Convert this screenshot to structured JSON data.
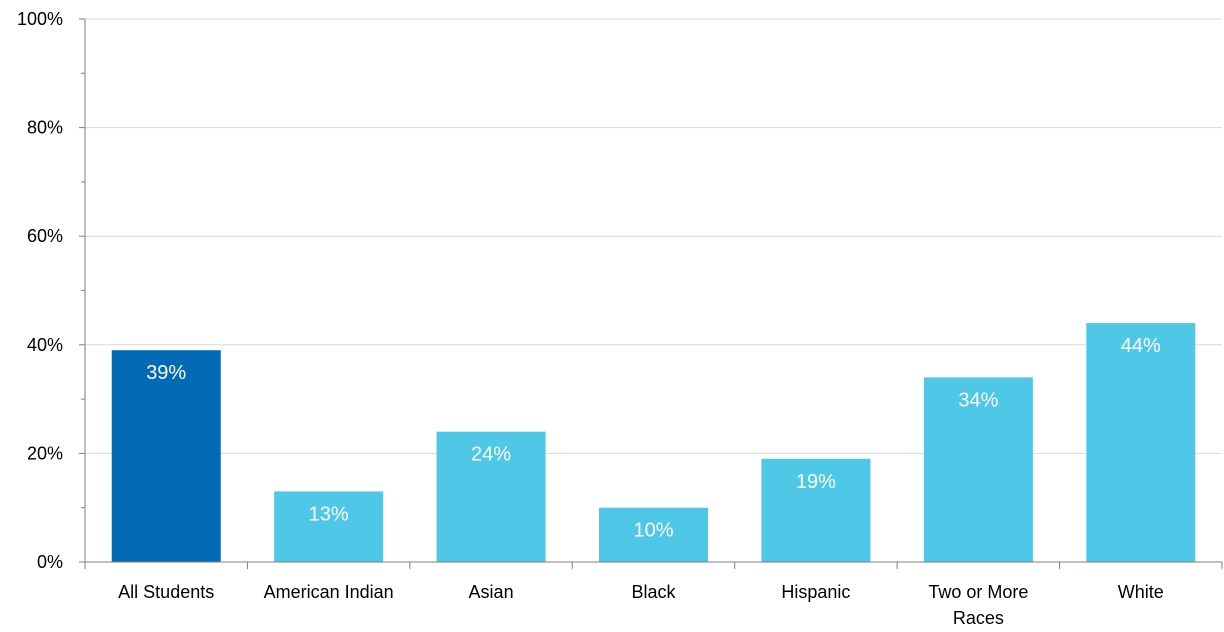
{
  "chart_data": {
    "type": "bar",
    "title": "",
    "xlabel": "",
    "ylabel": "",
    "categories": [
      [
        "All Students"
      ],
      [
        "American Indian"
      ],
      [
        "Asian"
      ],
      [
        "Black"
      ],
      [
        "Hispanic"
      ],
      [
        "Two or More",
        "Races"
      ],
      [
        "White"
      ]
    ],
    "values": [
      39,
      13,
      24,
      10,
      19,
      34,
      44
    ],
    "data_labels": [
      "39%",
      "13%",
      "24%",
      "10%",
      "19%",
      "34%",
      "44%"
    ],
    "ylim": [
      0,
      100
    ],
    "yticks": [
      0,
      20,
      40,
      60,
      80,
      100
    ],
    "ytick_labels": [
      "0%",
      "20%",
      "40%",
      "60%",
      "80%",
      "100%"
    ],
    "grid": true,
    "legend": "none",
    "colors": {
      "highlight": "#036bb5",
      "bar": "#4fc8e8",
      "grid": "#d9d9d9",
      "axis": "#7f7f7f",
      "label_inside": "#ffffff"
    },
    "highlight_index": 0
  }
}
